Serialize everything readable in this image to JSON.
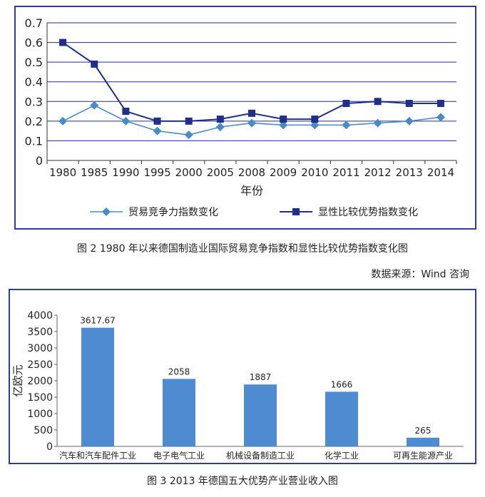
{
  "chart_data": [
    {
      "type": "line",
      "title": "",
      "xlabel": "年份",
      "ylabel": "",
      "categories": [
        "1980",
        "1985",
        "1990",
        "1995",
        "2000",
        "2005",
        "2008",
        "2009",
        "2010",
        "2011",
        "2012",
        "2013",
        "2014"
      ],
      "ylim": [
        0,
        0.7
      ],
      "yticks": [
        "0",
        "0.1",
        "0.2",
        "0.3",
        "0.4",
        "0.5",
        "0.6",
        "0.7"
      ],
      "grid": true,
      "legend": "bottom",
      "series": [
        {
          "name": "贸易竞争力指数变化",
          "marker": "diamond",
          "color": "#4a8ac9",
          "values": [
            0.2,
            0.28,
            0.2,
            0.15,
            0.13,
            0.17,
            0.19,
            0.18,
            0.18,
            0.18,
            0.19,
            0.2,
            0.22
          ]
        },
        {
          "name": "显性比较优势指数变化",
          "marker": "square",
          "color": "#1f2f8a",
          "values": [
            0.6,
            0.49,
            0.25,
            0.2,
            0.2,
            0.21,
            0.24,
            0.21,
            0.21,
            0.29,
            0.3,
            0.29,
            0.29
          ]
        }
      ]
    },
    {
      "type": "bar",
      "title": "",
      "xlabel": "",
      "ylabel": "亿欧元",
      "categories": [
        "汽车和汽车配件工业",
        "电子电气工业",
        "机械设备制造工业",
        "化学工业",
        "可再生能源产业"
      ],
      "values": [
        3617.67,
        2058,
        1887,
        1666,
        265
      ],
      "value_labels": [
        "3617.67",
        "2058",
        "1887",
        "1666",
        "265"
      ],
      "ylim": [
        0,
        4000
      ],
      "yticks": [
        "0",
        "500",
        "1000",
        "1500",
        "2000",
        "2500",
        "3000",
        "3500",
        "4000"
      ],
      "grid": false,
      "color": "#4f8bd0"
    }
  ],
  "captions": {
    "fig2": "图 2  1980 年以来德国制造业国际贸易竞争指数和显性比较优势指数变化图",
    "source": "数据来源：Wind 咨询",
    "fig3": "图 3  2013 年德国五大优势产业营业收入图"
  }
}
